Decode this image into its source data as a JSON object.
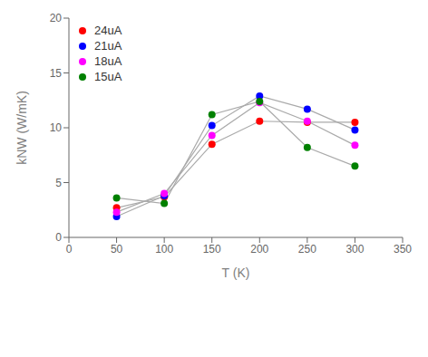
{
  "chart_data": {
    "type": "line",
    "x": [
      50,
      100,
      150,
      200,
      250,
      300
    ],
    "series": [
      {
        "name": "24uA",
        "color": "#ff0000",
        "values": [
          2.7,
          3.7,
          8.5,
          10.6,
          10.5,
          10.5
        ]
      },
      {
        "name": "21uA",
        "color": "#0000ff",
        "values": [
          1.9,
          3.8,
          10.2,
          12.9,
          11.7,
          9.8
        ]
      },
      {
        "name": "18uA",
        "color": "#ff00ff",
        "values": [
          2.3,
          4.0,
          9.3,
          12.3,
          10.6,
          8.4
        ]
      },
      {
        "name": "15uA",
        "color": "#008000",
        "values": [
          3.6,
          3.1,
          11.2,
          12.4,
          8.2,
          6.5
        ]
      }
    ],
    "color": "#aaaaaa",
    "marker": "circle",
    "xlabel": "T (K)",
    "ylabel": "kNW (W/mK)",
    "xlim": [
      0,
      350
    ],
    "ylim": [
      0,
      20
    ],
    "xticks": [
      0,
      50,
      100,
      150,
      200,
      250,
      300,
      350
    ],
    "yticks": [
      0,
      5,
      10,
      15,
      20
    ],
    "grid": false,
    "legend": "upper left"
  }
}
